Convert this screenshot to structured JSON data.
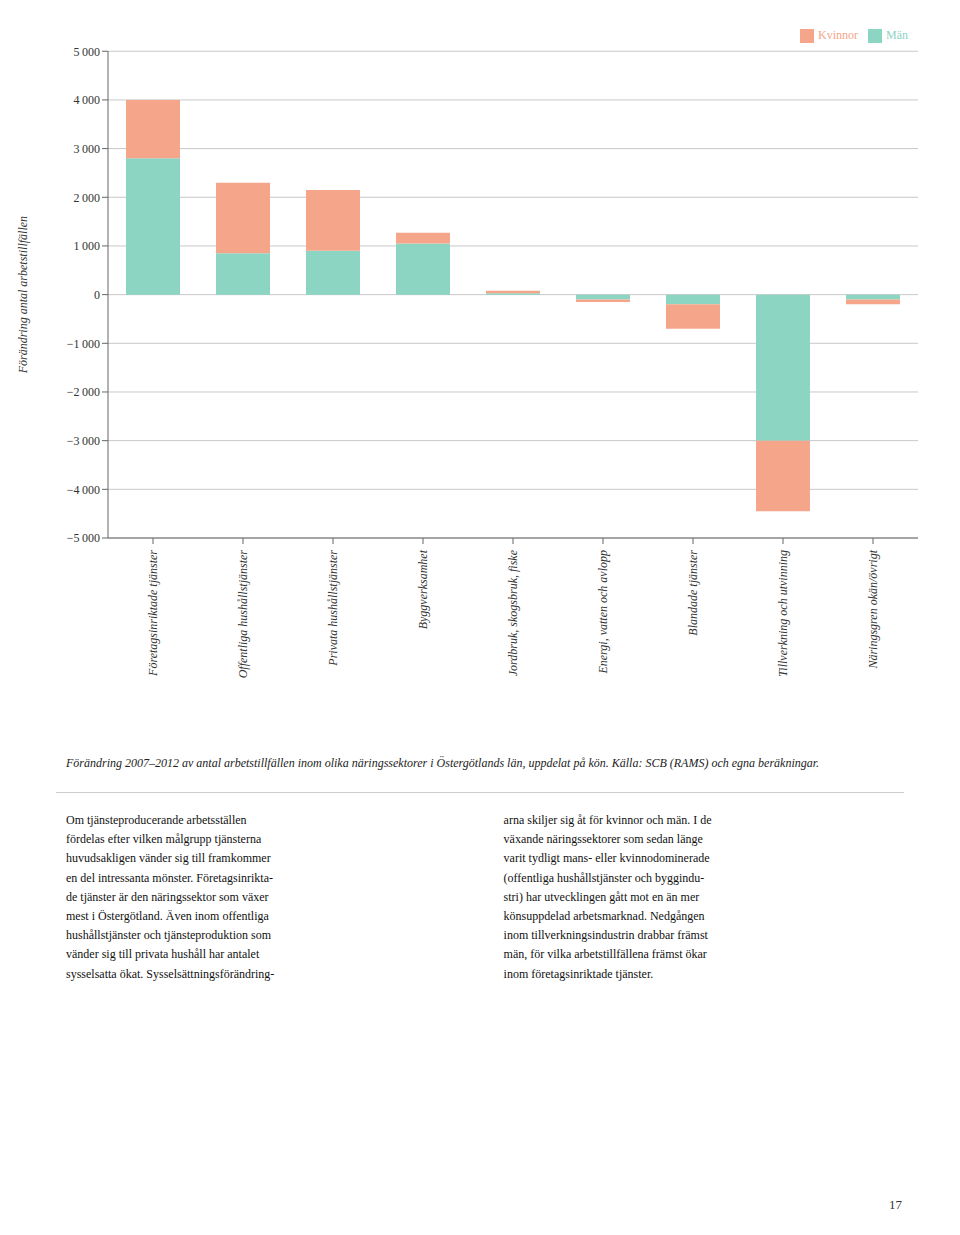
{
  "chart_data": {
    "type": "bar",
    "stacked": true,
    "categories": [
      "Företagsinriktade tjänster",
      "Offentliga hushållstjänster",
      "Privata hushållstjänster",
      "Byggverksamhet",
      "Jordbruk, skogsbruk, fiske",
      "Energi, vatten och avlopp",
      "Blandade tjänster",
      "Tillverkning och utvinning",
      "Näringsgren okän/övrigt"
    ],
    "series": [
      {
        "name": "Män",
        "color": "#8dd5c3",
        "values": [
          2800,
          850,
          900,
          1050,
          30,
          -100,
          -200,
          -3000,
          -100
        ]
      },
      {
        "name": "Kvinnor",
        "color": "#f4a58a",
        "values": [
          1200,
          1450,
          1250,
          220,
          50,
          -50,
          -500,
          -1450,
          -100
        ]
      }
    ],
    "ylabel": "Förändring antal arbetstillfällen",
    "ylim": [
      -5000,
      5000
    ],
    "yticks": [
      {
        "value": -5000,
        "label": "−5 000"
      },
      {
        "value": -4000,
        "label": "−4 000"
      },
      {
        "value": -3000,
        "label": "−3 000"
      },
      {
        "value": -2000,
        "label": "−2 000"
      },
      {
        "value": -1000,
        "label": "−1 000"
      },
      0,
      {
        "value": 1000,
        "label": "1 000"
      },
      {
        "value": 2000,
        "label": "2 000"
      },
      {
        "value": 3000,
        "label": "3 000"
      },
      {
        "value": 4000,
        "label": "4 000"
      },
      {
        "value": 5000,
        "label": "5 000"
      }
    ],
    "grid": true,
    "legend": "upper right",
    "annotations": [
      "Förändring 2007–2012 av antal arbetstillfällen inom olika näringssektorer i Östergötlands län, uppdelat på kön. Källa: SCB (RAMS) och egna beräkningar.",
      "Om tjänsteproducerande arbetsställen\nfördelas efter vilken målgrupp tjänsterna\nhuvudsakligen vänder sig till framkommer\nen del intressanta mönster. Företagsinrikta-\nde tjänster är den näringssektor som växer\nmest i Östergötland. Även inom offentliga\nhushållstjänster och tjänsteproduktion som\nvänder sig till privata hushåll har antalet\nsysselsatta ökat. Sysselsättningsförändring-",
      "arna skiljer sig åt för kvinnor och män. I de\nväxande näringssektorer som sedan länge\nvarit tydligt mans- eller kvinnodominerade\n(offentliga hushållstjänster och byggindu-\nstri) har utvecklingen gått mot en än mer\nkönsuppdelad arbetsmarknad. Nedgången\ninom tillverkningsindustrin drabbar främst\nmän, för vilka arbetstillfällena främst ökar\ninom företagsinriktade tjänster.",
      "17"
    ]
  }
}
